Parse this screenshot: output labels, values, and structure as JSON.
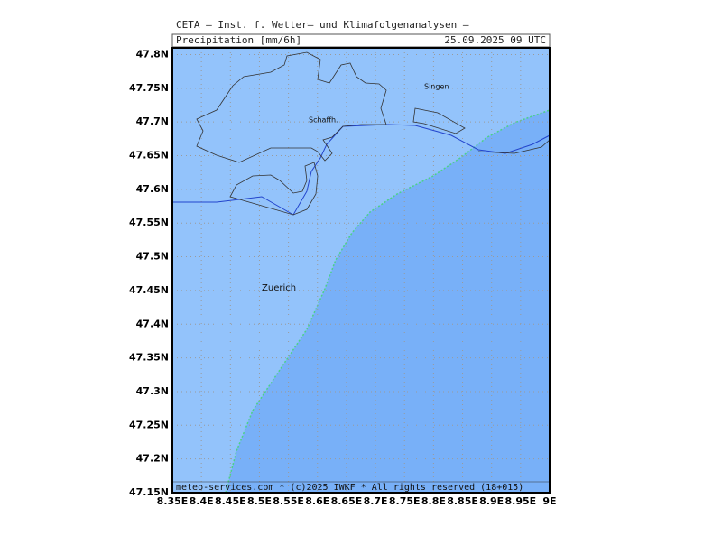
{
  "header": {
    "institute": "CETA — Inst. f. Wetter— und Klimafolgenanalysen —",
    "title": "Precipitation [mm/6h]",
    "date": "25.09.2025 09 UTC"
  },
  "map": {
    "xlim": [
      8.35,
      9.0
    ],
    "ylim": [
      47.15,
      47.81
    ],
    "lat_ticks": [
      {
        "value": 47.8,
        "label": "47.8N"
      },
      {
        "value": 47.75,
        "label": "47.75N"
      },
      {
        "value": 47.7,
        "label": "47.7N"
      },
      {
        "value": 47.65,
        "label": "47.65N"
      },
      {
        "value": 47.6,
        "label": "47.6N"
      },
      {
        "value": 47.55,
        "label": "47.55N"
      },
      {
        "value": 47.5,
        "label": "47.5N"
      },
      {
        "value": 47.45,
        "label": "47.45N"
      },
      {
        "value": 47.4,
        "label": "47.4N"
      },
      {
        "value": 47.35,
        "label": "47.35N"
      },
      {
        "value": 47.3,
        "label": "47.3N"
      },
      {
        "value": 47.25,
        "label": "47.25N"
      },
      {
        "value": 47.2,
        "label": "47.2N"
      },
      {
        "value": 47.15,
        "label": "47.15N"
      }
    ],
    "lon_ticks": [
      {
        "value": 8.35,
        "label": "8.35E"
      },
      {
        "value": 8.4,
        "label": "8.4E"
      },
      {
        "value": 8.45,
        "label": "8.45E"
      },
      {
        "value": 8.5,
        "label": "8.5E"
      },
      {
        "value": 8.55,
        "label": "8.55E"
      },
      {
        "value": 8.6,
        "label": "8.6E"
      },
      {
        "value": 8.65,
        "label": "8.65E"
      },
      {
        "value": 8.7,
        "label": "8.7E"
      },
      {
        "value": 8.75,
        "label": "8.75E"
      },
      {
        "value": 8.8,
        "label": "8.8E"
      },
      {
        "value": 8.85,
        "label": "8.85E"
      },
      {
        "value": 8.9,
        "label": "8.9E"
      },
      {
        "value": 8.95,
        "label": "8.95E"
      },
      {
        "value": 9.0,
        "label": "9E"
      }
    ],
    "cities": [
      "Singen",
      "Schaffh.",
      "Zuerich"
    ]
  },
  "footer": "meteo-services.com * (c)2025 IWKF * All rights reserved (18+015)"
}
